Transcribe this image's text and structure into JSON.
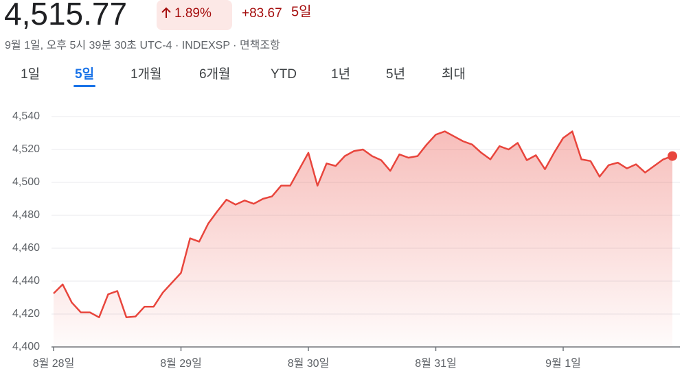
{
  "header": {
    "price": "4,515.77",
    "change_percent": "1.89%",
    "change_value": "+83.67",
    "period": "5일",
    "subtitle": "9월 1일, 오후 5시 39분 30초 UTC-4 · INDEXSP · 면책조항"
  },
  "tabs": {
    "items": [
      "1일",
      "5일",
      "1개월",
      "6개월",
      "YTD",
      "1년",
      "5년",
      "최대"
    ],
    "selected": 1
  },
  "chart_data": {
    "type": "line",
    "color": "#e8453c",
    "grid": true,
    "categories": [
      "8월 28일",
      null,
      null,
      null,
      null,
      null,
      null,
      null,
      null,
      null,
      null,
      null,
      null,
      null,
      "8월 29일",
      null,
      null,
      null,
      null,
      null,
      null,
      null,
      null,
      null,
      null,
      null,
      null,
      null,
      "8월 30일",
      null,
      null,
      null,
      null,
      null,
      null,
      null,
      null,
      null,
      null,
      null,
      null,
      null,
      "8월 31일",
      null,
      null,
      null,
      null,
      null,
      null,
      null,
      null,
      null,
      null,
      null,
      null,
      null,
      "9월 1일",
      null,
      null,
      null,
      null,
      null,
      null,
      null,
      null,
      null,
      null,
      null,
      null
    ],
    "values": [
      4432.5,
      4438,
      4427,
      4421,
      4421,
      4418,
      4432,
      4434,
      4418,
      4418.5,
      4424.5,
      4424.5,
      4433,
      4439,
      4445,
      4466,
      4464,
      4475,
      4482.5,
      4489.5,
      4486.5,
      4489,
      4487,
      4490,
      4491.5,
      4498,
      4498,
      4508,
      4518,
      4498,
      4511.5,
      4510,
      4516,
      4519,
      4520,
      4516,
      4513.5,
      4507,
      4517,
      4515,
      4516,
      4523,
      4529,
      4531,
      4528,
      4525,
      4523,
      4518,
      4514,
      4522,
      4520,
      4524,
      4513.5,
      4516.5,
      4508,
      4518,
      4527,
      4531,
      4514,
      4513,
      4503.5,
      4510.5,
      4512,
      4508.5,
      4511,
      4506,
      4510,
      4514,
      4516
    ],
    "ylim": [
      4400,
      4540
    ],
    "yticks": [
      {
        "value": 4400,
        "label": "4,400"
      },
      {
        "value": 4420,
        "label": "4,420"
      },
      {
        "value": 4440,
        "label": "4,440"
      },
      {
        "value": 4460,
        "label": "4,460"
      },
      {
        "value": 4480,
        "label": "4,480"
      },
      {
        "value": 4500,
        "label": "4,500"
      },
      {
        "value": 4520,
        "label": "4,520"
      },
      {
        "value": 4540,
        "label": "4,540"
      }
    ]
  }
}
